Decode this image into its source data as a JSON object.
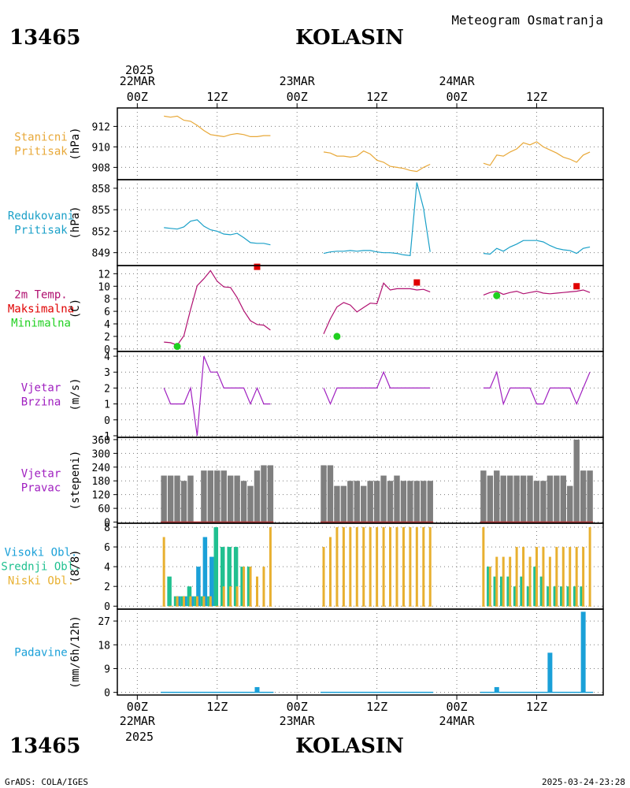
{
  "header": {
    "station_id": "13465",
    "station_name": "KOLASIN",
    "subtitle": "Meteogram Osmatranja"
  },
  "footer": {
    "credit": "GrADS: COLA/IGES",
    "generated": "2025-03-24-23:28"
  },
  "time_axis": {
    "top_year": "2025",
    "bottom_year": "2025",
    "labels": [
      {
        "hour": 0,
        "line1": "22MAR",
        "line2": "00Z"
      },
      {
        "hour": 12,
        "line1": "",
        "line2": "12Z"
      },
      {
        "hour": 24,
        "line1": "23MAR",
        "line2": "00Z"
      },
      {
        "hour": 36,
        "line1": "",
        "line2": "12Z"
      },
      {
        "hour": 48,
        "line1": "24MAR",
        "line2": "00Z"
      },
      {
        "hour": 60,
        "line1": "",
        "line2": "12Z"
      }
    ],
    "range_hours": [
      -3,
      70
    ]
  },
  "colors": {
    "pressure": "#e8a838",
    "redpressure": "#1aa0c8",
    "temp": "#b01070",
    "tmax": "#e00000",
    "tmin": "#20d020",
    "wind": "#a020c0",
    "dir_bar": "#7f7f7f",
    "high_cloud": "#1aa0d8",
    "mid_cloud": "#20c090",
    "low_cloud": "#e8b030",
    "precip": "#1aa0d8",
    "grid": "#7a7a7a"
  },
  "chart_data": [
    {
      "type": "line",
      "id": "p1",
      "label_lines": [
        "Stanicni",
        "Pritisak"
      ],
      "label_color": "#e8a838",
      "unit": "(hPa)",
      "ylim": [
        906.8,
        913.8
      ],
      "yticks": [
        908,
        910,
        912
      ],
      "ytick_labels": [
        "908",
        "910",
        "912"
      ],
      "series": [
        {
          "color": "#e8a838",
          "x": [
            4,
            5,
            6,
            7,
            8,
            9,
            10,
            11,
            12,
            13,
            14,
            15,
            16,
            17,
            18,
            19,
            20
          ],
          "y": [
            913.0,
            912.9,
            913.0,
            912.6,
            912.5,
            912.1,
            911.6,
            911.2,
            911.1,
            911.0,
            911.2,
            911.3,
            911.2,
            911.0,
            911.0,
            911.1,
            911.1
          ]
        },
        {
          "color": "#e8a838",
          "x": [
            28,
            29,
            30,
            31,
            32,
            33,
            34,
            35,
            36,
            37,
            38,
            39,
            40,
            41,
            42,
            43,
            44
          ],
          "y": [
            909.5,
            909.4,
            909.1,
            909.1,
            909.0,
            909.1,
            909.6,
            909.3,
            908.7,
            908.5,
            908.1,
            908.0,
            907.9,
            907.7,
            907.6,
            908.0,
            908.3
          ]
        },
        {
          "color": "#e8a838",
          "x": [
            52,
            53,
            54,
            55,
            56,
            57,
            58,
            59,
            60,
            61,
            62,
            63,
            64,
            65,
            66,
            67,
            68
          ],
          "y": [
            908.4,
            908.2,
            909.2,
            909.1,
            909.5,
            909.8,
            910.4,
            910.2,
            910.5,
            910.0,
            909.7,
            909.4,
            909.0,
            908.8,
            908.5,
            909.2,
            909.5
          ]
        }
      ]
    },
    {
      "type": "line",
      "id": "p2",
      "label_lines": [
        "Redukovani",
        "Pritisak"
      ],
      "label_color": "#1aa0c8",
      "unit": "(hPa)",
      "ylim": [
        847.2,
        859.2
      ],
      "yticks": [
        849,
        852,
        855,
        858
      ],
      "ytick_labels": [
        "849",
        "852",
        "855",
        "858"
      ],
      "series": [
        {
          "color": "#1aa0c8",
          "x": [
            4,
            5,
            6,
            7,
            8,
            9,
            10,
            11,
            12,
            13,
            14,
            15,
            16,
            17,
            18,
            19,
            20
          ],
          "y": [
            852.5,
            852.4,
            852.3,
            852.6,
            853.4,
            853.6,
            852.7,
            852.2,
            852.0,
            851.6,
            851.5,
            851.7,
            851.1,
            850.4,
            850.3,
            850.3,
            850.1
          ]
        },
        {
          "color": "#1aa0c8",
          "x": [
            28,
            29,
            30,
            31,
            32,
            33,
            34,
            35,
            36,
            37,
            38,
            39,
            40,
            41,
            42,
            43,
            44
          ],
          "y": [
            848.9,
            849.1,
            849.2,
            849.2,
            849.3,
            849.2,
            849.3,
            849.3,
            849.1,
            849.0,
            849.0,
            848.9,
            848.7,
            848.6,
            858.8,
            855.2,
            849.1
          ]
        },
        {
          "color": "#1aa0c8",
          "x": [
            52,
            53,
            54,
            55,
            56,
            57,
            58,
            59,
            60,
            61,
            62,
            63,
            64,
            65,
            66,
            67,
            68
          ],
          "y": [
            848.9,
            848.8,
            849.6,
            849.2,
            849.8,
            850.2,
            850.7,
            850.7,
            850.7,
            850.5,
            850.0,
            849.6,
            849.4,
            849.3,
            848.9,
            849.6,
            849.8
          ]
        }
      ]
    },
    {
      "type": "line",
      "id": "p3",
      "label_lines": [
        "2m Temp.",
        "Maksimalna",
        "Minimalna"
      ],
      "label_colors": [
        "#b01070",
        "#e00000",
        "#20d020"
      ],
      "unit": "(C)",
      "ylim": [
        -0.4,
        13.3
      ],
      "yticks": [
        0,
        2,
        4,
        6,
        8,
        10,
        12
      ],
      "ytick_labels": [
        "0",
        "2",
        "4",
        "6",
        "8",
        "10",
        "12"
      ],
      "series": [
        {
          "color": "#b01070",
          "x": [
            4,
            5,
            6,
            7,
            8,
            9,
            10,
            11,
            12,
            13,
            14,
            15,
            16,
            17,
            18,
            19,
            20
          ],
          "y": [
            1.1,
            1.0,
            0.6,
            2.1,
            6.3,
            10.1,
            11.2,
            12.5,
            10.8,
            9.9,
            9.8,
            8.2,
            6.1,
            4.5,
            3.9,
            3.8,
            3.0
          ]
        },
        {
          "color": "#b01070",
          "x": [
            28,
            29,
            30,
            31,
            32,
            33,
            34,
            35,
            36,
            37,
            38,
            39,
            40,
            41,
            42,
            43,
            44
          ],
          "y": [
            2.4,
            4.8,
            6.7,
            7.4,
            7.0,
            5.9,
            6.6,
            7.3,
            7.2,
            10.5,
            9.4,
            9.6,
            9.6,
            9.6,
            9.4,
            9.5,
            9.1
          ]
        },
        {
          "color": "#b01070",
          "x": [
            52,
            53,
            54,
            55,
            56,
            57,
            58,
            59,
            60,
            61,
            62,
            63,
            64,
            65,
            66,
            67,
            68
          ],
          "y": [
            8.6,
            9.0,
            9.2,
            8.7,
            9.0,
            9.2,
            8.8,
            9.0,
            9.2,
            8.9,
            8.8,
            8.9,
            9.0,
            9.1,
            9.2,
            9.4,
            9.0
          ]
        }
      ],
      "markers": [
        {
          "kind": "max",
          "shape": "square",
          "color": "#e00000",
          "x": [
            18,
            42,
            66
          ],
          "y": [
            13.1,
            10.6,
            10.0
          ]
        },
        {
          "kind": "min",
          "shape": "circle",
          "color": "#20d020",
          "x": [
            6,
            30,
            54
          ],
          "y": [
            0.4,
            2.0,
            8.5
          ]
        }
      ]
    },
    {
      "type": "line",
      "id": "p4",
      "label_lines": [
        "Vjetar",
        "Brzina"
      ],
      "label_color": "#a020c0",
      "unit": "(m/s)",
      "ylim": [
        -1.1,
        4.3
      ],
      "yticks": [
        -1,
        0,
        1,
        2,
        3,
        4
      ],
      "ytick_labels": [
        "-1",
        "0",
        "1",
        "2",
        "3",
        "4"
      ],
      "series": [
        {
          "color": "#a020c0",
          "x": [
            4,
            5,
            6,
            7,
            8,
            9,
            10,
            11,
            12,
            13,
            14,
            15,
            16,
            17,
            18,
            19,
            20
          ],
          "y": [
            2,
            1,
            1,
            1,
            2,
            -1,
            4,
            3,
            3,
            2,
            2,
            2,
            2,
            1,
            2,
            1,
            1
          ]
        },
        {
          "color": "#a020c0",
          "x": [
            28,
            29,
            30,
            31,
            32,
            33,
            34,
            35,
            36,
            37,
            38,
            39,
            40,
            41,
            42,
            43,
            44
          ],
          "y": [
            2,
            1,
            2,
            2,
            2,
            2,
            2,
            2,
            2,
            3,
            2,
            2,
            2,
            2,
            2,
            2,
            2
          ]
        },
        {
          "color": "#a020c0",
          "x": [
            52,
            53,
            54,
            55,
            56,
            57,
            58,
            59,
            60,
            61,
            62,
            63,
            64,
            65,
            66,
            67,
            68
          ],
          "y": [
            2,
            2,
            3,
            1,
            2,
            2,
            2,
            2,
            1,
            1,
            2,
            2,
            2,
            2,
            1,
            2,
            3
          ]
        }
      ]
    },
    {
      "type": "bar",
      "id": "p5",
      "label_lines": [
        "Vjetar",
        "Pravac"
      ],
      "label_color": "#a020c0",
      "unit": "(stepeni)",
      "ylim": [
        -5,
        370
      ],
      "yticks": [
        0,
        60,
        120,
        180,
        240,
        300,
        360
      ],
      "ytick_labels": [
        "0",
        "60",
        "120",
        "180",
        "240",
        "300",
        "360"
      ],
      "bar_color": "#7f7f7f",
      "x": [
        4,
        5,
        6,
        7,
        8,
        9,
        10,
        11,
        12,
        13,
        14,
        15,
        16,
        17,
        18,
        19,
        20,
        28,
        29,
        30,
        31,
        32,
        33,
        34,
        35,
        36,
        37,
        38,
        39,
        40,
        41,
        42,
        43,
        44,
        52,
        53,
        54,
        55,
        56,
        57,
        58,
        59,
        60,
        61,
        62,
        63,
        64,
        65,
        66,
        67,
        68
      ],
      "values": [
        203,
        203,
        203,
        180,
        203,
        0,
        225,
        225,
        225,
        225,
        203,
        203,
        180,
        158,
        225,
        248,
        248,
        248,
        248,
        158,
        158,
        180,
        180,
        158,
        180,
        180,
        203,
        180,
        203,
        180,
        180,
        180,
        180,
        180,
        225,
        203,
        225,
        203,
        203,
        203,
        203,
        203,
        180,
        180,
        203,
        203,
        203,
        158,
        360,
        225,
        225
      ],
      "baseline_marks": true
    },
    {
      "type": "bar",
      "id": "p6",
      "label_lines": [
        "Visoki Obl.",
        "Srednji Obl.",
        "Niski Obl."
      ],
      "label_colors": [
        "#1aa0d8",
        "#20c090",
        "#e8b030"
      ],
      "unit": "(8/8)",
      "ylim": [
        -0.3,
        8.4
      ],
      "yticks": [
        0,
        2,
        4,
        6,
        8
      ],
      "ytick_labels": [
        "0",
        "2",
        "4",
        "6",
        "8"
      ],
      "x": [
        4,
        5,
        6,
        7,
        8,
        9,
        10,
        11,
        12,
        13,
        14,
        15,
        16,
        17,
        18,
        19,
        20,
        28,
        29,
        30,
        31,
        32,
        33,
        34,
        35,
        36,
        37,
        38,
        39,
        40,
        41,
        42,
        43,
        44,
        52,
        53,
        54,
        55,
        56,
        57,
        58,
        59,
        60,
        61,
        62,
        63,
        64,
        65,
        66,
        67,
        68
      ],
      "series": [
        {
          "name": "Visoki Obl.",
          "color": "#1aa0d8",
          "values": [
            0,
            0,
            1,
            1,
            1,
            4,
            7,
            5,
            0,
            0,
            0,
            0,
            0,
            0,
            0,
            0,
            0,
            0,
            0,
            0,
            0,
            0,
            0,
            0,
            0,
            0,
            0,
            0,
            0,
            0,
            0,
            0,
            0,
            0,
            0,
            0,
            0,
            0,
            0,
            0,
            0,
            0,
            0,
            0,
            0,
            0,
            0,
            0,
            0,
            0,
            0
          ]
        },
        {
          "name": "Srednji Obl.",
          "color": "#20c090",
          "values": [
            0,
            3,
            1,
            1,
            2,
            1,
            1,
            1,
            8,
            6,
            6,
            6,
            4,
            4,
            0,
            0,
            0,
            0,
            0,
            0,
            0,
            0,
            0,
            0,
            0,
            0,
            0,
            0,
            0,
            0,
            0,
            0,
            0,
            0,
            0,
            4,
            3,
            3,
            3,
            2,
            3,
            2,
            4,
            3,
            2,
            2,
            2,
            2,
            2,
            2,
            0
          ]
        },
        {
          "name": "Niski Obl.",
          "color": "#e8b030",
          "values": [
            7,
            0,
            1,
            1,
            1,
            1,
            1,
            1,
            0,
            2,
            2,
            2,
            4,
            4,
            3,
            4,
            8,
            6,
            7,
            8,
            8,
            8,
            8,
            8,
            8,
            8,
            8,
            8,
            8,
            8,
            8,
            8,
            8,
            8,
            8,
            4,
            5,
            5,
            5,
            6,
            6,
            5,
            6,
            6,
            5,
            6,
            6,
            6,
            6,
            6,
            8
          ]
        }
      ]
    },
    {
      "type": "bar",
      "id": "p7",
      "label_lines": [
        "Padavine"
      ],
      "label_color": "#1aa0d8",
      "unit": "(mm/6h/12h)",
      "ylim": [
        -1.0,
        31.5
      ],
      "yticks": [
        0,
        9,
        18,
        27
      ],
      "ytick_labels": [
        "0",
        "9",
        "18",
        "27"
      ],
      "bar_color": "#1aa0d8",
      "x": [
        4,
        5,
        6,
        7,
        8,
        9,
        10,
        11,
        12,
        13,
        14,
        15,
        16,
        17,
        18,
        19,
        20,
        28,
        29,
        30,
        31,
        32,
        33,
        34,
        35,
        36,
        37,
        38,
        39,
        40,
        41,
        42,
        43,
        44,
        52,
        53,
        54,
        55,
        56,
        57,
        58,
        59,
        60,
        61,
        62,
        63,
        64,
        65,
        66,
        67,
        68
      ],
      "values": [
        0,
        0,
        0,
        0,
        0,
        0,
        0,
        0,
        0,
        0,
        0,
        0,
        0,
        0,
        2,
        0,
        0,
        0,
        0,
        0,
        0,
        0,
        0,
        0,
        0,
        0,
        0,
        0,
        0,
        0,
        0,
        0,
        0,
        0,
        0,
        0,
        2,
        0,
        0,
        0,
        0,
        0,
        0,
        0,
        15,
        0,
        0,
        0,
        0,
        30.5,
        0
      ]
    }
  ]
}
